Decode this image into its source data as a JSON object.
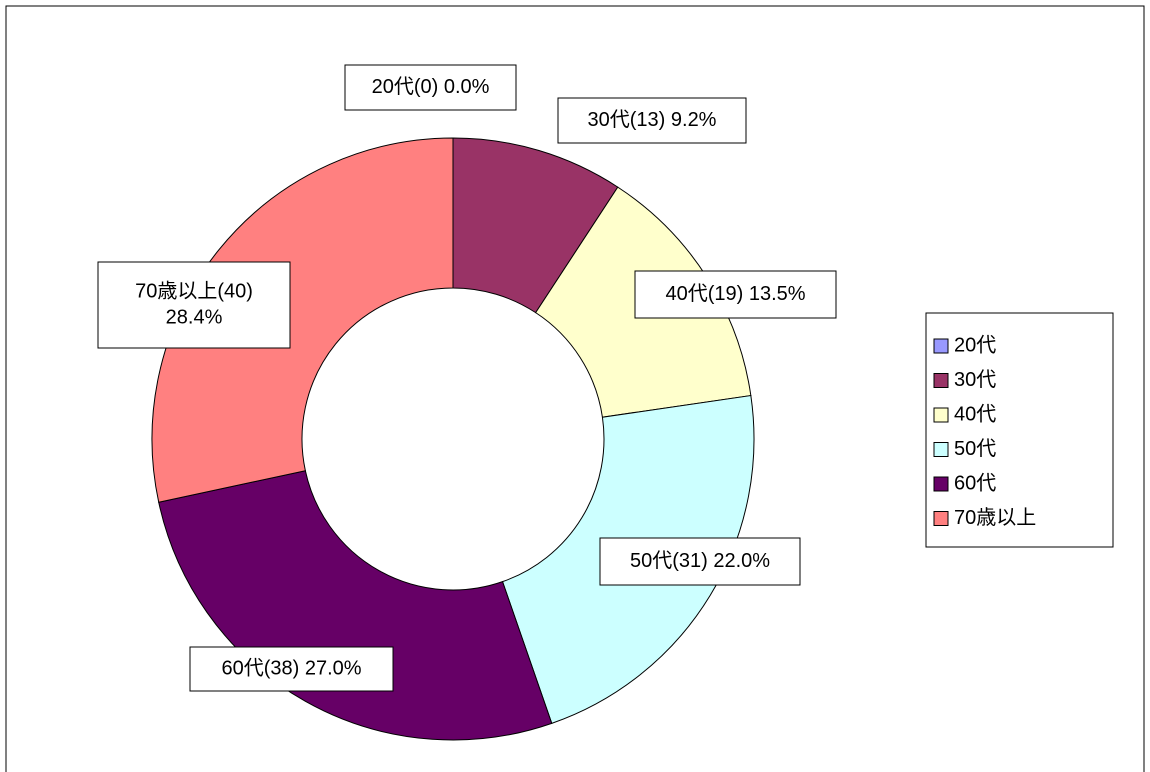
{
  "chart_data": {
    "type": "donut",
    "categories": [
      "20代",
      "30代",
      "40代",
      "50代",
      "60代",
      "70歳以上"
    ],
    "values": [
      0,
      13,
      19,
      31,
      38,
      40
    ],
    "value_labels": [
      [
        "20代(0) 0.0%"
      ],
      [
        "30代(13) 9.2%"
      ],
      [
        "40代(19) 13.5%"
      ],
      [
        "50代(31) 22.0%"
      ],
      [
        "60代(38) 27.0%"
      ],
      [
        "70歳以上(40)",
        "28.4%"
      ]
    ],
    "colors": [
      "#9999ff",
      "#993366",
      "#ffffcc",
      "#ccffff",
      "#660066",
      "#ff8080"
    ],
    "legend": "right"
  }
}
